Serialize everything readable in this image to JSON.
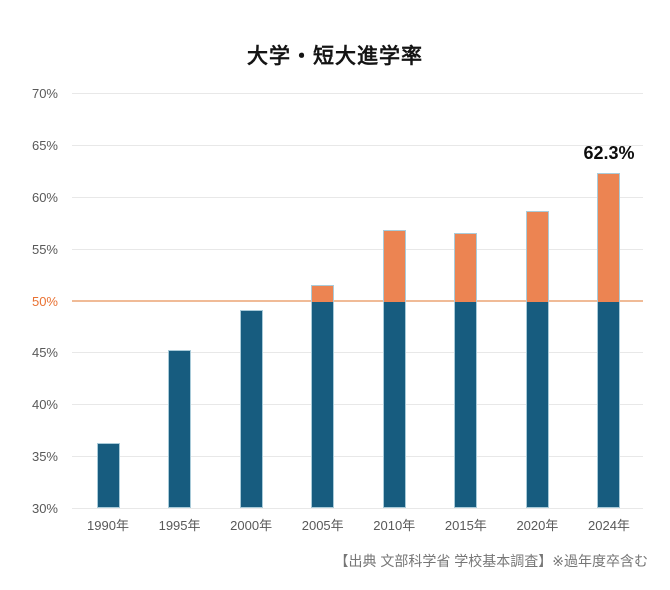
{
  "title": "大学・短大進学率",
  "source_note": "【出典 文部科学省 学校基本調査】※過年度卒含む",
  "colors": {
    "bar_below_threshold": "#175C7F",
    "bar_above_threshold": "#EC8452",
    "bar_border": "#A9CBD9",
    "threshold_line": "#F0BB97",
    "threshold_tick_label": "#E97132",
    "gridline": "#E8E8E8",
    "axis_text": "#595959",
    "source_text": "#767676",
    "title_text": "#141414"
  },
  "chart_data": {
    "type": "bar",
    "title": "大学・短大進学率",
    "categories": [
      "1990年",
      "1995年",
      "2000年",
      "2005年",
      "2010年",
      "2015年",
      "2020年",
      "2024年"
    ],
    "values": [
      36.3,
      45.2,
      49.1,
      51.5,
      56.8,
      56.5,
      58.6,
      62.3
    ],
    "xlabel": "",
    "ylabel": "",
    "ylim": [
      30,
      70
    ],
    "ytick_step": 5,
    "yticks": [
      "70%",
      "65%",
      "60%",
      "55%",
      "50%",
      "45%",
      "40%",
      "35%",
      "30%"
    ],
    "threshold_value": 50,
    "data_label": {
      "category": "2024年",
      "text": "62.3%"
    },
    "grid": true,
    "legend": false,
    "color_rule": "segment below 50% teal, segment above 50% orange"
  }
}
